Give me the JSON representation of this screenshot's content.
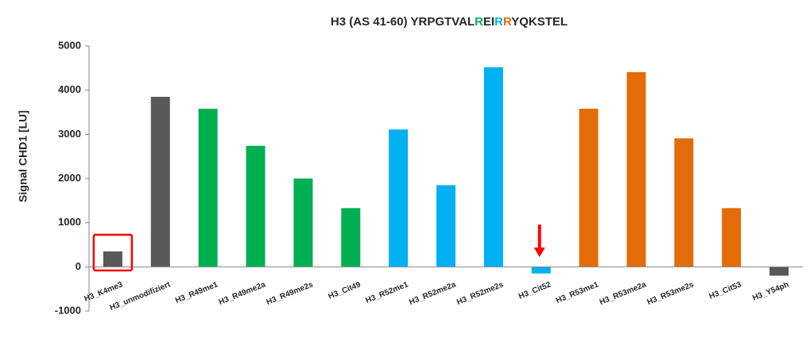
{
  "chart_data": {
    "type": "bar",
    "title_parts": [
      {
        "text": "H3 (AS 41-60) YRPGTVAL",
        "color": "#262626"
      },
      {
        "text": "R",
        "color": "#00b050"
      },
      {
        "text": "EI",
        "color": "#262626"
      },
      {
        "text": "R",
        "color": "#00b0f0"
      },
      {
        "text": "R",
        "color": "#e36c09"
      },
      {
        "text": "YQKSTEL",
        "color": "#262626"
      }
    ],
    "y_label": "Signal CHD1 [LU]",
    "categories": [
      "H3_K4me3",
      "H3_unmodifiziert",
      "H3_R49me1",
      "H3_R49me2a",
      "H3_R49me2s",
      "H3_Cit49",
      "H3_R52me1",
      "H3_R52me2a",
      "H3_R52me2s",
      "H3_Cit52",
      "H3_R53me1",
      "H3_R53me2a",
      "H3_R53me2s",
      "H3_Cit53",
      "H3_Y54ph"
    ],
    "values": [
      350,
      3850,
      3580,
      2740,
      2000,
      1330,
      3110,
      1850,
      4520,
      -150,
      3580,
      4410,
      2910,
      1330,
      -200
    ],
    "colors": [
      "#595959",
      "#595959",
      "#00b050",
      "#00b050",
      "#00b050",
      "#00b050",
      "#00b0f0",
      "#00b0f0",
      "#00b0f0",
      "#00b0f0",
      "#e36c09",
      "#e36c09",
      "#e36c09",
      "#e36c09",
      "#595959"
    ],
    "ylim": [
      -1000,
      5000
    ],
    "yticks": [
      -1000,
      0,
      1000,
      2000,
      3000,
      4000,
      5000
    ],
    "grid": false
  }
}
